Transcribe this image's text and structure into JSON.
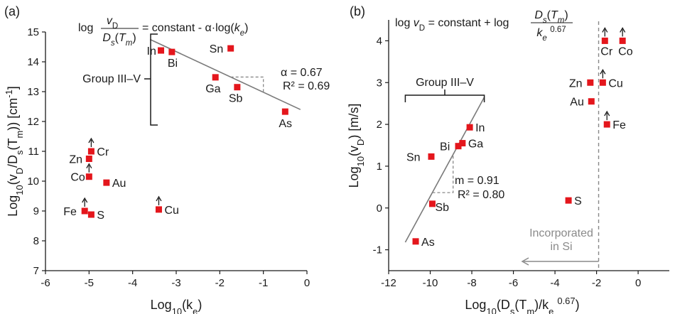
{
  "chart_data": [
    {
      "type": "scatter",
      "panel_label": "(a)",
      "xlabel": "Log₁₀(kₑ)",
      "ylabel": "Log₁₀(v_D/D_s(T_m)) [cm⁻¹]",
      "xlim": [
        -6,
        0
      ],
      "ylim": [
        7,
        15
      ],
      "x_ticks": [
        -6,
        -5,
        -4,
        -3,
        -2,
        -1,
        0
      ],
      "y_ticks": [
        7,
        8,
        9,
        10,
        11,
        12,
        13,
        14,
        15
      ],
      "formula": {
        "log": "log",
        "num": "v_D",
        "den": "D_s(T_m)",
        "rhs": "= constant - α·log(k_e)"
      },
      "group_label": "Group III–V",
      "fit": {
        "slope_label": "α = 0.67",
        "r2_label": "R² = 0.69",
        "x": [
          -3.6,
          -0.15
        ],
        "y": [
          14.75,
          12.4
        ]
      },
      "series": [
        {
          "points": [
            {
              "label": "In",
              "x": -3.35,
              "y": 14.38,
              "lower_bound": false
            },
            {
              "label": "Bi",
              "x": -3.1,
              "y": 14.33,
              "lower_bound": false
            },
            {
              "label": "Sn",
              "x": -1.75,
              "y": 14.45,
              "lower_bound": false
            },
            {
              "label": "Ga",
              "x": -2.1,
              "y": 13.48,
              "lower_bound": false
            },
            {
              "label": "Sb",
              "x": -1.6,
              "y": 13.15,
              "lower_bound": false
            },
            {
              "label": "As",
              "x": -0.5,
              "y": 12.33,
              "lower_bound": false
            },
            {
              "label": "Cr",
              "x": -4.95,
              "y": 11.0,
              "lower_bound": true
            },
            {
              "label": "Zn",
              "x": -5.0,
              "y": 10.75,
              "lower_bound": false
            },
            {
              "label": "Co",
              "x": -5.0,
              "y": 10.15,
              "lower_bound": true
            },
            {
              "label": "Au",
              "x": -4.6,
              "y": 9.95,
              "lower_bound": false
            },
            {
              "label": "Cu",
              "x": -3.4,
              "y": 9.05,
              "lower_bound": true
            },
            {
              "label": "Fe",
              "x": -5.1,
              "y": 9.0,
              "lower_bound": true
            },
            {
              "label": "S",
              "x": -4.95,
              "y": 8.88,
              "lower_bound": false
            }
          ]
        }
      ]
    },
    {
      "type": "scatter",
      "panel_label": "(b)",
      "xlabel": "Log₁₀(D_s(T_m)/kₑ^0.67)",
      "ylabel": "Log₁₀(v_D) [m/s]",
      "xlim": [
        -12,
        1.5
      ],
      "ylim": [
        -1.5,
        4.5
      ],
      "x_ticks": [
        -12,
        -10,
        -8,
        -6,
        -4,
        -2,
        0
      ],
      "y_ticks": [
        -1,
        0,
        1,
        2,
        3,
        4
      ],
      "formula": {
        "lhs": "log v_D = constant + log",
        "num": "D_s(T_m)",
        "den": "k_e^0.67"
      },
      "group_label": "Group III–V",
      "fit": {
        "slope_label": "m = 0.91",
        "r2_label": "R² = 0.80",
        "x": [
          -11.2,
          -7.4
        ],
        "y": [
          -0.82,
          2.65
        ]
      },
      "incorporated_label": [
        "Incorporated",
        "in Si"
      ],
      "incorporation_threshold_x": -1.9,
      "series": [
        {
          "points": [
            {
              "label": "In",
              "x": -8.1,
              "y": 1.93,
              "lower_bound": false
            },
            {
              "label": "Bi",
              "x": -8.65,
              "y": 1.48,
              "lower_bound": false
            },
            {
              "label": "Ga",
              "x": -8.45,
              "y": 1.55,
              "lower_bound": false
            },
            {
              "label": "Sn",
              "x": -9.95,
              "y": 1.23,
              "lower_bound": false
            },
            {
              "label": "Sb",
              "x": -9.9,
              "y": 0.1,
              "lower_bound": false
            },
            {
              "label": "As",
              "x": -10.7,
              "y": -0.8,
              "lower_bound": false
            },
            {
              "label": "S",
              "x": -3.35,
              "y": 0.18,
              "lower_bound": false
            },
            {
              "label": "Cr",
              "x": -1.6,
              "y": 4.0,
              "lower_bound": true
            },
            {
              "label": "Co",
              "x": -0.75,
              "y": 4.0,
              "lower_bound": true
            },
            {
              "label": "Zn",
              "x": -2.3,
              "y": 3.0,
              "lower_bound": false
            },
            {
              "label": "Cu",
              "x": -1.7,
              "y": 3.0,
              "lower_bound": true
            },
            {
              "label": "Au",
              "x": -2.25,
              "y": 2.55,
              "lower_bound": false
            },
            {
              "label": "Fe",
              "x": -1.5,
              "y": 2.0,
              "lower_bound": true
            }
          ]
        }
      ]
    }
  ]
}
